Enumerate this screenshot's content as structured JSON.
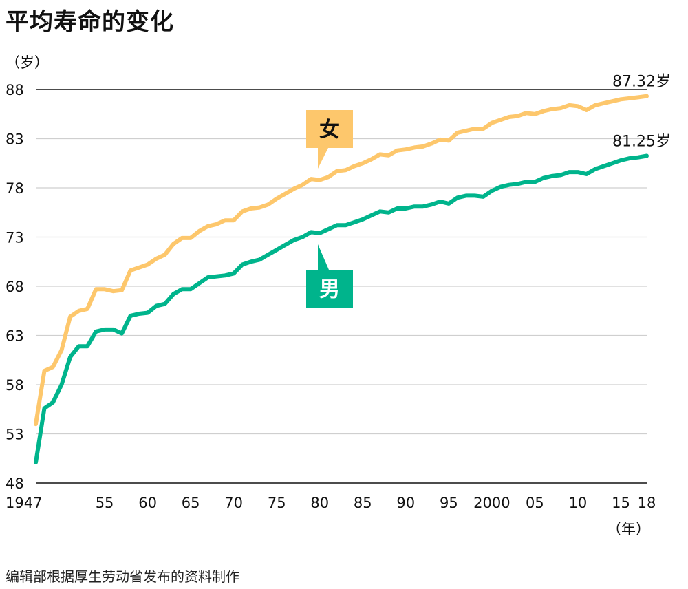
{
  "title": "平均寿命的变化",
  "source": "编辑部根据厚生劳动省发布的资料制作",
  "chart_data": {
    "type": "line",
    "y_unit": "（岁）",
    "x_unit": "（年）",
    "ylim": [
      48,
      88
    ],
    "yticks": [
      "88",
      "83",
      "78",
      "73",
      "68",
      "63",
      "58",
      "53",
      "48"
    ],
    "ytick_values": [
      88,
      83,
      78,
      73,
      68,
      63,
      58,
      53,
      48
    ],
    "xlim": [
      1947,
      2018
    ],
    "xticks": [
      {
        "year": 1947,
        "label": "1947"
      },
      {
        "year": 1955,
        "label": "55"
      },
      {
        "year": 1960,
        "label": "60"
      },
      {
        "year": 1965,
        "label": "65"
      },
      {
        "year": 1970,
        "label": "70"
      },
      {
        "year": 1975,
        "label": "75"
      },
      {
        "year": 1980,
        "label": "80"
      },
      {
        "year": 1985,
        "label": "85"
      },
      {
        "year": 1990,
        "label": "90"
      },
      {
        "year": 1995,
        "label": "95"
      },
      {
        "year": 2000,
        "label": "2000"
      },
      {
        "year": 2005,
        "label": "05"
      },
      {
        "year": 2010,
        "label": "10"
      },
      {
        "year": 2015,
        "label": "15"
      },
      {
        "year": 2018,
        "label": "18"
      }
    ],
    "grid": true,
    "x": [
      1947,
      1948,
      1949,
      1950,
      1951,
      1952,
      1953,
      1954,
      1955,
      1956,
      1957,
      1958,
      1959,
      1960,
      1961,
      1962,
      1963,
      1964,
      1965,
      1966,
      1967,
      1968,
      1969,
      1970,
      1971,
      1972,
      1973,
      1974,
      1975,
      1976,
      1977,
      1978,
      1979,
      1980,
      1981,
      1982,
      1983,
      1984,
      1985,
      1986,
      1987,
      1988,
      1989,
      1990,
      1991,
      1992,
      1993,
      1994,
      1995,
      1996,
      1997,
      1998,
      1999,
      2000,
      2001,
      2002,
      2003,
      2004,
      2005,
      2006,
      2007,
      2008,
      2009,
      2010,
      2011,
      2012,
      2013,
      2014,
      2015,
      2016,
      2017,
      2018
    ],
    "series": [
      {
        "name": "女",
        "color": "#fdc76c",
        "end_label": "87.32岁",
        "values": [
          54.0,
          59.4,
          59.8,
          61.5,
          64.9,
          65.5,
          65.7,
          67.7,
          67.7,
          67.5,
          67.6,
          69.6,
          69.9,
          70.2,
          70.8,
          71.2,
          72.3,
          72.9,
          72.9,
          73.6,
          74.1,
          74.3,
          74.7,
          74.7,
          75.6,
          75.9,
          76.0,
          76.3,
          76.9,
          77.4,
          77.9,
          78.3,
          78.9,
          78.8,
          79.1,
          79.7,
          79.8,
          80.2,
          80.5,
          80.9,
          81.4,
          81.3,
          81.8,
          81.9,
          82.1,
          82.2,
          82.5,
          82.9,
          82.8,
          83.6,
          83.8,
          84.0,
          84.0,
          84.6,
          84.9,
          85.2,
          85.3,
          85.6,
          85.5,
          85.8,
          86.0,
          86.1,
          86.4,
          86.3,
          85.9,
          86.4,
          86.6,
          86.8,
          87.0,
          87.1,
          87.2,
          87.32
        ]
      },
      {
        "name": "男",
        "color": "#00b48c",
        "end_label": "81.25岁",
        "values": [
          50.1,
          55.6,
          56.2,
          58.0,
          60.8,
          61.9,
          61.9,
          63.4,
          63.6,
          63.6,
          63.2,
          65.0,
          65.2,
          65.3,
          66.0,
          66.2,
          67.2,
          67.7,
          67.7,
          68.3,
          68.9,
          69.0,
          69.1,
          69.3,
          70.2,
          70.5,
          70.7,
          71.2,
          71.7,
          72.2,
          72.7,
          73.0,
          73.5,
          73.4,
          73.8,
          74.2,
          74.2,
          74.5,
          74.8,
          75.2,
          75.6,
          75.5,
          75.9,
          75.9,
          76.1,
          76.1,
          76.3,
          76.6,
          76.4,
          77.0,
          77.2,
          77.2,
          77.1,
          77.7,
          78.1,
          78.3,
          78.4,
          78.6,
          78.6,
          79.0,
          79.2,
          79.3,
          79.6,
          79.6,
          79.4,
          79.9,
          80.2,
          80.5,
          80.8,
          81.0,
          81.1,
          81.25
        ]
      }
    ]
  }
}
